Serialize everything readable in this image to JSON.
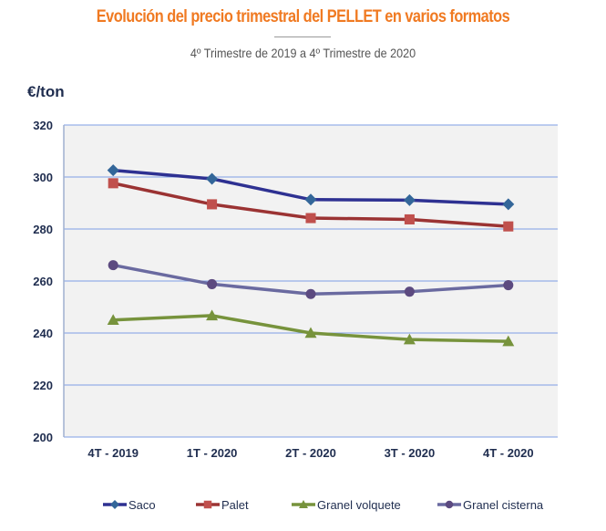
{
  "chart_data": {
    "type": "line",
    "title": "Evolución del precio trimestral del PELLET en varios formatos",
    "subtitle": "4º Trimestre de 2019 a 4º Trimestre de 2020",
    "ylabel": "€/ton",
    "xlabel": "",
    "categories": [
      "4T - 2019",
      "1T - 2020",
      "2T - 2020",
      "3T - 2020",
      "4T - 2020"
    ],
    "ylim": [
      200,
      320
    ],
    "yticks": [
      200,
      220,
      240,
      260,
      280,
      300,
      320
    ],
    "grid": true,
    "legend": "bottom",
    "series": [
      {
        "name": "Saco",
        "values": [
          302.6,
          299.3,
          291.3,
          291.1,
          289.5
        ],
        "color": "#2e3192",
        "marker": "diamond",
        "marker_color": "#336699"
      },
      {
        "name": "Palet",
        "values": [
          297.6,
          289.5,
          284.2,
          283.7,
          281.0
        ],
        "color": "#9b3333",
        "marker": "square",
        "marker_color": "#c0504d"
      },
      {
        "name": "Granel volquete",
        "values": [
          245.0,
          246.7,
          240.0,
          237.5,
          236.8
        ],
        "color": "#77933c",
        "marker": "triangle",
        "marker_color": "#77933c"
      },
      {
        "name": "Granel cisterna",
        "values": [
          266.1,
          258.8,
          255.0,
          255.9,
          258.4
        ],
        "color": "#6a6aa0",
        "marker": "circle",
        "marker_color": "#5c4a80"
      }
    ]
  }
}
